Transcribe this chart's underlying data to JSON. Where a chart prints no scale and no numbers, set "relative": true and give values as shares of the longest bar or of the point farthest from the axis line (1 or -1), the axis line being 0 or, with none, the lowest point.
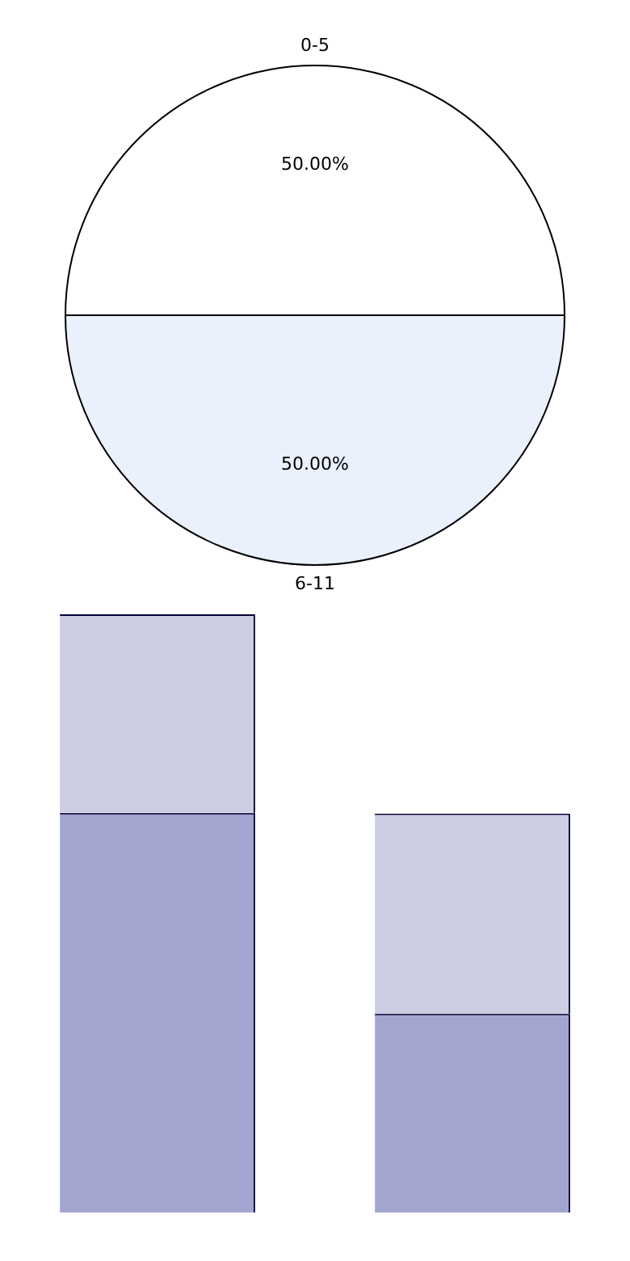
{
  "chart_data": [
    {
      "type": "pie",
      "categories": [
        "0-5",
        "6-11"
      ],
      "values": [
        50,
        50
      ],
      "colors": [
        "#ffffff",
        "#eaf0fc"
      ],
      "value_labels": [
        "50.00%",
        "50.00%"
      ]
    },
    {
      "type": "bar",
      "stacked": true,
      "relative": true,
      "categories": [
        null,
        null
      ],
      "series": [
        {
          "color": "#a3a5d1",
          "values": [
            0.668,
            0.332
          ]
        },
        {
          "color": "#cdcde4",
          "values": [
            0.332,
            0.335
          ]
        }
      ]
    }
  ]
}
